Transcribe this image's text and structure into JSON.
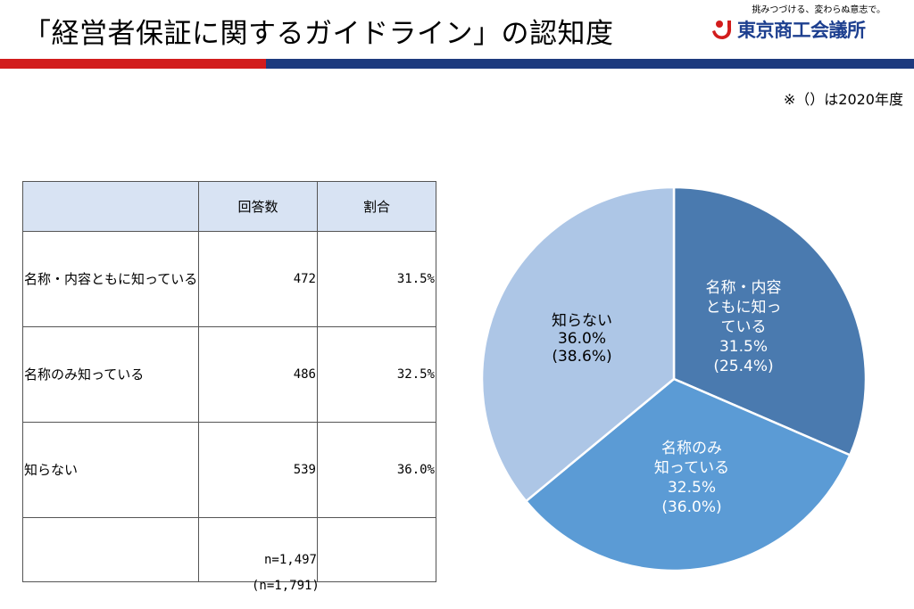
{
  "header": {
    "title": "「経営者保証に関するガイドライン」の認知度",
    "logo_tagline": "挑みつづける、変わらぬ意志で。",
    "logo_name": "東京商工会議所",
    "note": "※（）は2020年度"
  },
  "table": {
    "headers": [
      "",
      "回答数",
      "割合"
    ],
    "rows": [
      {
        "label": "名称・内容ともに知っている",
        "count": "472",
        "pct": "31.5%"
      },
      {
        "label": "名称のみ知っている",
        "count": "486",
        "pct": "32.5%"
      },
      {
        "label": "知らない",
        "count": "539",
        "pct": "36.0%"
      }
    ],
    "total": "n=1,497",
    "prev_total": "(n=1,791)"
  },
  "colors": {
    "slice_known_both": "#4a7aaf",
    "slice_name_only": "#5b9bd5",
    "slice_unknown": "#adc6e6",
    "accent_red": "#d21c1c",
    "accent_blue": "#1d3a7e"
  },
  "chart_data": {
    "type": "pie",
    "categories": [
      "名称・内容ともに知っている",
      "名称のみ知っている",
      "知らない"
    ],
    "values": [
      31.5,
      32.5,
      36.0
    ],
    "previous_values": [
      25.4,
      36.0,
      38.6
    ],
    "labels": [
      {
        "lines": [
          "名称・内容",
          "ともに知っ",
          "ている",
          "31.5%",
          "(25.4%)"
        ]
      },
      {
        "lines": [
          "名称のみ",
          "知っている",
          "32.5%",
          "(36.0%)"
        ]
      },
      {
        "lines": [
          "知らない",
          "36.0%",
          "(38.6%)"
        ]
      }
    ],
    "title": "",
    "legend": "none"
  }
}
